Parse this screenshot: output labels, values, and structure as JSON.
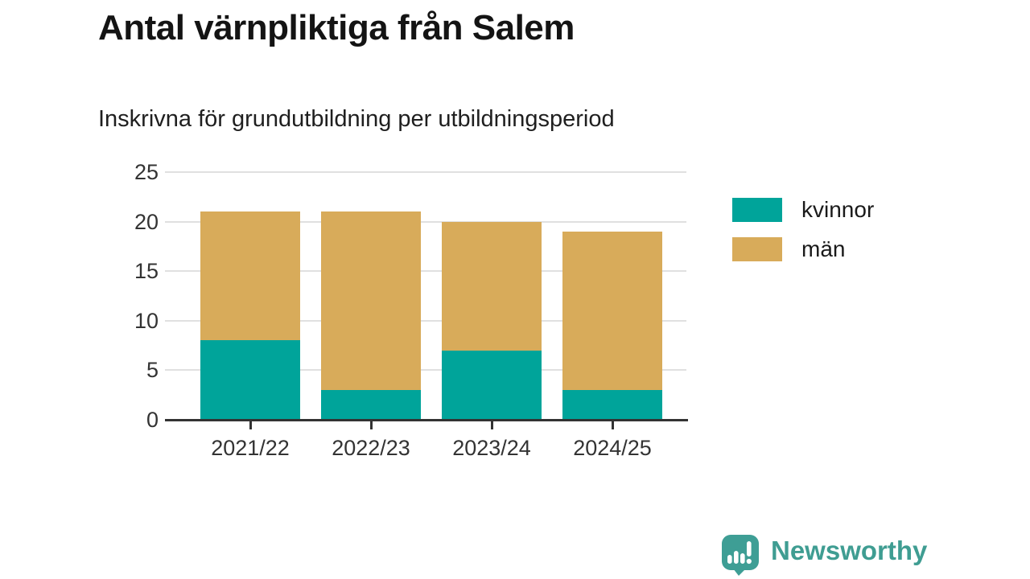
{
  "header": {
    "title": "Antal värnpliktiga från Salem",
    "subtitle": "Inskrivna för grundutbildning per utbildningsperiod"
  },
  "chart_data": {
    "type": "bar",
    "stacked": true,
    "title": "Antal värnpliktiga från Salem",
    "subtitle": "Inskrivna för grundutbildning per utbildningsperiod",
    "categories": [
      "2021/22",
      "2022/23",
      "2023/24",
      "2024/25"
    ],
    "series": [
      {
        "name": "kvinnor",
        "color": "#00a49a",
        "values": [
          8,
          3,
          7,
          3
        ]
      },
      {
        "name": "män",
        "color": "#d8ab5a",
        "values": [
          13,
          18,
          13,
          16
        ]
      }
    ],
    "stack_totals": [
      21,
      21,
      20,
      19
    ],
    "ylim": [
      0,
      25
    ],
    "yticks": [
      0,
      5,
      10,
      15,
      20,
      25
    ],
    "grid": "horizontal",
    "legend_position": "right"
  },
  "footer": {
    "brand": "Newsworthy"
  },
  "colors": {
    "kvinnor": "#00a49a",
    "man": "#d8ab5a",
    "gridline": "#e0e0e0",
    "axis": "#333333",
    "tick_text": "#333333",
    "title_text": "#141414",
    "brand_teal": "#3f9d92",
    "logo_bubble": "#3e9e95"
  }
}
